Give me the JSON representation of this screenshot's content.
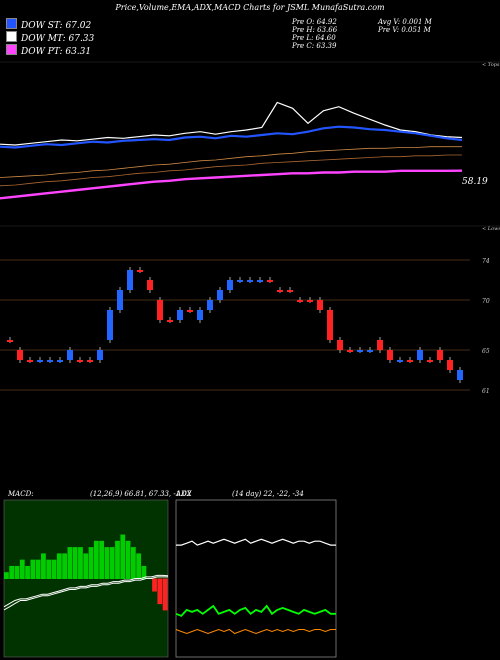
{
  "header": "Price,Volume,EMA,ADX,MACD Charts for JSML  MunafaSutra.com",
  "legend": [
    {
      "label": "DOW ST: 67.02",
      "color": "#2255ff"
    },
    {
      "label": "DOW MT: 67.33",
      "color": "#ffffff"
    },
    {
      "label": "DOW PT: 63.31",
      "color": "#ff44ff"
    }
  ],
  "stats": {
    "open": "Pre   O: 64.92",
    "high": "Pre   H: 63.66",
    "low": "Pre   L: 64.60",
    "close": "Pre   C: 63.39",
    "avgv": "Avg V: 0.001 M",
    "prev": "Pre   V: 0.051 M"
  },
  "price_axis": {
    "top_label": "< Tops",
    "bottom_label": "< Lows"
  },
  "chart_data": [
    {
      "type": "line",
      "title": "",
      "series": [
        {
          "name": "DOW ST",
          "color": "#2255ff",
          "values": [
            66.2,
            66.1,
            66.3,
            66.5,
            66.4,
            66.6,
            66.8,
            66.7,
            66.9,
            67.0,
            67.1,
            67.0,
            67.3,
            67.4,
            67.2,
            67.5,
            67.4,
            67.6,
            67.8,
            67.7,
            68.0,
            68.4,
            68.6,
            68.5,
            68.3,
            68.2,
            68.0,
            67.8,
            67.5,
            67.2,
            67.0
          ]
        },
        {
          "name": "DOW MT",
          "color": "#ffffff",
          "values": [
            66.5,
            66.4,
            66.6,
            66.8,
            67.0,
            66.9,
            67.1,
            67.3,
            67.2,
            67.4,
            67.6,
            67.5,
            67.8,
            68.0,
            67.7,
            68.0,
            68.2,
            68.5,
            71.5,
            70.8,
            69.0,
            70.5,
            71.0,
            70.2,
            69.5,
            68.8,
            68.2,
            68.0,
            67.6,
            67.4,
            67.3
          ]
        },
        {
          "name": "DOW PT",
          "color": "#ff44ff",
          "values": [
            60.0,
            60.2,
            60.4,
            60.6,
            60.8,
            61.0,
            61.2,
            61.4,
            61.6,
            61.8,
            62.0,
            62.1,
            62.3,
            62.4,
            62.5,
            62.6,
            62.7,
            62.8,
            62.9,
            63.0,
            63.0,
            63.1,
            63.1,
            63.2,
            63.2,
            63.2,
            63.3,
            63.3,
            63.3,
            63.3,
            63.31
          ]
        }
      ],
      "last_label": "58.19"
    },
    {
      "type": "candlestick",
      "ylim": [
        60,
        76
      ],
      "ticks": [
        "74",
        "70",
        "65",
        "61"
      ],
      "x": [
        1,
        2,
        3,
        4,
        5,
        6,
        7,
        8,
        9,
        10,
        11,
        12,
        13,
        14,
        15,
        16,
        17,
        18,
        19,
        20,
        21,
        22,
        23,
        24,
        25,
        26,
        27,
        28,
        29,
        30,
        31,
        32,
        33,
        34,
        35,
        36,
        37,
        38,
        39,
        40,
        41,
        42,
        43,
        44,
        45,
        46
      ],
      "open": [
        66,
        65,
        64,
        64,
        64,
        64,
        64,
        64,
        64,
        64,
        66,
        69,
        71,
        73,
        72,
        70,
        68,
        68,
        69,
        68,
        69,
        70,
        71,
        72,
        72,
        72,
        72,
        71,
        71,
        70,
        70,
        70,
        69,
        66,
        65,
        65,
        65,
        65,
        65,
        64,
        64,
        64,
        64,
        65,
        64,
        63
      ],
      "close": [
        66,
        64,
        64,
        64,
        64,
        64,
        65,
        64,
        64,
        65,
        69,
        71,
        73,
        73,
        71,
        68,
        68,
        69,
        69,
        69,
        70,
        71,
        72,
        72,
        72,
        72,
        72,
        71,
        71,
        70,
        70,
        69,
        66,
        65,
        65,
        65,
        65,
        66,
        64,
        64,
        64,
        65,
        64,
        64,
        63,
        62
      ],
      "candle_color": [
        "red",
        "red",
        "red",
        "blue",
        "blue",
        "blue",
        "blue",
        "red",
        "red",
        "blue",
        "blue",
        "blue",
        "blue",
        "red",
        "red",
        "red",
        "red",
        "blue",
        "red",
        "blue",
        "blue",
        "blue",
        "blue",
        "blue",
        "blue",
        "blue",
        "red",
        "red",
        "red",
        "red",
        "red",
        "red",
        "red",
        "red",
        "red",
        "blue",
        "blue",
        "red",
        "red",
        "blue",
        "red",
        "blue",
        "red",
        "red",
        "red",
        "blue"
      ]
    },
    {
      "type": "line",
      "title": "MACD: (12,26,9) 66.81, 67.33, -1.02",
      "series": [
        {
          "name": "MACD",
          "color": "#ffffff",
          "values": [
            -3,
            -2.8,
            -2.6,
            -2.5,
            -2.5,
            -2.4,
            -2.3,
            -2.2,
            -2.2,
            -2.1,
            -2.0,
            -1.9,
            -1.8,
            -1.8,
            -1.7,
            -1.7,
            -1.6,
            -1.6,
            -1.5,
            -1.5,
            -1.4,
            -1.4,
            -1.3,
            -1.3,
            -1.2,
            -1.2,
            -1.1,
            -1.1,
            -1.0,
            -1.0,
            -1.02
          ]
        },
        {
          "name": "Signal",
          "color": "#ffffff",
          "values": [
            -3.2,
            -3.0,
            -2.8,
            -2.6,
            -2.6,
            -2.5,
            -2.4,
            -2.3,
            -2.3,
            -2.2,
            -2.1,
            -2.0,
            -1.9,
            -1.9,
            -1.8,
            -1.8,
            -1.7,
            -1.7,
            -1.6,
            -1.6,
            -1.5,
            -1.5,
            -1.4,
            -1.4,
            -1.3,
            -1.3,
            -1.2,
            -1.2,
            -1.1,
            -1.1,
            -1.1
          ]
        }
      ],
      "histogram": [
        0.1,
        0.2,
        0.2,
        0.3,
        0.2,
        0.3,
        0.3,
        0.4,
        0.3,
        0.3,
        0.4,
        0.4,
        0.5,
        0.5,
        0.5,
        0.4,
        0.5,
        0.6,
        0.6,
        0.5,
        0.5,
        0.6,
        0.7,
        0.6,
        0.5,
        0.4,
        0.2,
        0.0,
        -0.2,
        -0.4,
        -0.5
      ]
    },
    {
      "type": "line",
      "title": "ADX (14 day) 22, -22, -34",
      "series": [
        {
          "name": "ADX",
          "color": "#ffffff",
          "values": [
            22,
            22,
            23,
            24,
            22,
            23,
            24,
            23,
            24,
            25,
            24,
            23,
            24,
            25,
            23,
            24,
            25,
            24,
            23,
            24,
            25,
            24,
            23,
            24,
            24,
            23,
            24,
            24,
            23,
            22,
            22
          ]
        },
        {
          "name": "+DI",
          "color": "#00ff00",
          "values": [
            22,
            21,
            24,
            23,
            24,
            22,
            24,
            26,
            22,
            23,
            24,
            22,
            24,
            25,
            22,
            24,
            23,
            26,
            22,
            24,
            25,
            24,
            23,
            22,
            24,
            23,
            22,
            23,
            24,
            22,
            22
          ]
        },
        {
          "name": "-DI",
          "color": "#ff8800",
          "values": [
            34,
            33,
            32,
            33,
            34,
            33,
            32,
            33,
            34,
            33,
            34,
            32,
            33,
            34,
            33,
            32,
            33,
            34,
            33,
            34,
            33,
            34,
            33,
            34,
            34,
            33,
            34,
            34,
            33,
            34,
            34
          ]
        }
      ]
    }
  ]
}
